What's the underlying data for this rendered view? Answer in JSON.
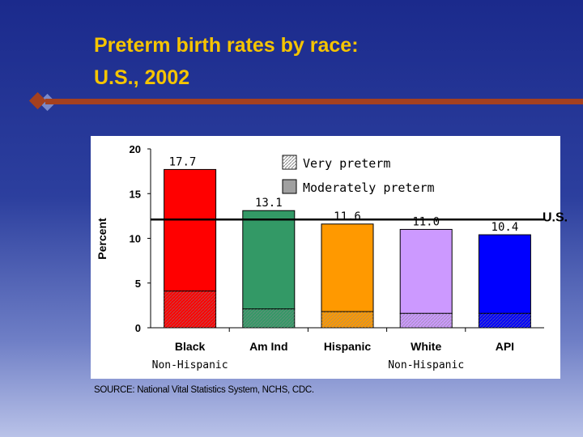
{
  "slide": {
    "title_line1": "Preterm birth rates by race:",
    "title_line2": "U.S., 2002",
    "source": "SOURCE: National Vital Statistics System, NCHS, CDC."
  },
  "chart_data": {
    "type": "bar",
    "stacked": true,
    "categories": [
      "Black",
      "Am Ind",
      "Hispanic",
      "White",
      "API"
    ],
    "sublabels": [
      "Non-Hispanic",
      "",
      "",
      "Non-Hispanic",
      ""
    ],
    "totals": [
      17.7,
      13.1,
      11.6,
      11.0,
      10.4
    ],
    "total_labels": [
      "17.7",
      "13.1",
      "11.6",
      "11.0",
      "10.4"
    ],
    "series": [
      {
        "name": "Very preterm",
        "values": [
          4.1,
          2.1,
          1.8,
          1.6,
          1.6
        ],
        "pattern": "hatched"
      },
      {
        "name": "Moderately preterm",
        "values": [
          13.6,
          11.0,
          9.8,
          9.4,
          8.8
        ]
      }
    ],
    "bar_colors": [
      "#ff0000",
      "#339966",
      "#ff9900",
      "#cc99ff",
      "#0000ff"
    ],
    "reference_line": {
      "label": "U.S.",
      "value": 12.1
    },
    "ylabel": "Percent",
    "ylim": [
      0,
      20
    ],
    "yticks": [
      0,
      5,
      10,
      15,
      20
    ],
    "legend_position": "top-right",
    "grid": false
  }
}
